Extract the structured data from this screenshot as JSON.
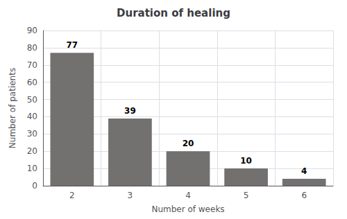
{
  "chart_data": {
    "type": "bar",
    "title": "Duration of healing",
    "xlabel": "Number of weeks",
    "ylabel": "Number of patients",
    "categories": [
      "2",
      "3",
      "4",
      "5",
      "6"
    ],
    "values": [
      77,
      39,
      20,
      10,
      4
    ],
    "color": "#737170",
    "ylim": [
      0,
      90
    ],
    "yticks": [
      0,
      10,
      20,
      30,
      40,
      50,
      60,
      70,
      80,
      90
    ],
    "grid": true,
    "data_labels": true
  }
}
